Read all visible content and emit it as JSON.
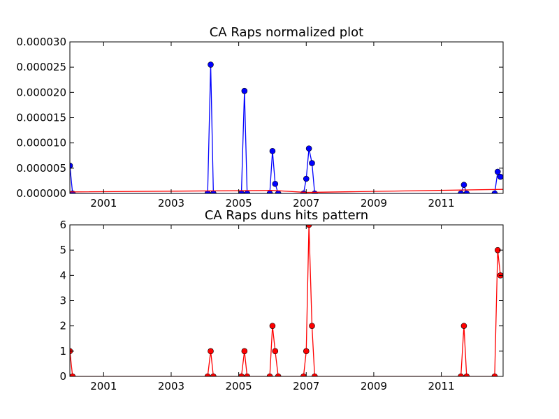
{
  "chart_data": [
    {
      "type": "line",
      "title": "CA Raps normalized plot",
      "xlabel": "",
      "ylabel": "",
      "xlim": [
        2000.0,
        2012.83
      ],
      "ylim": [
        0,
        3e-05
      ],
      "x_ticks": [
        2001,
        2003,
        2005,
        2007,
        2009,
        2011
      ],
      "y_ticks": [
        0,
        5e-06,
        1e-05,
        1.5e-05,
        2e-05,
        2.5e-05,
        3e-05
      ],
      "y_tick_labels": [
        "0.000000",
        "0.000005",
        "0.000010",
        "0.000015",
        "0.000020",
        "0.000025",
        "0.000030"
      ],
      "grid": false,
      "series": [
        {
          "name": "",
          "color": "#0000ff",
          "marker": "circle",
          "points": [
            [
              2000.0,
              5.5e-06
            ],
            [
              2000.08,
              0
            ],
            [
              2004.08,
              0
            ],
            [
              2004.17,
              2.55e-05
            ],
            [
              2004.25,
              0
            ],
            [
              2005.08,
              0
            ],
            [
              2005.17,
              2.03e-05
            ],
            [
              2005.25,
              0
            ],
            [
              2005.92,
              0
            ],
            [
              2006.0,
              8.4e-06
            ],
            [
              2006.08,
              1.9e-06
            ],
            [
              2006.17,
              0
            ],
            [
              2006.92,
              0
            ],
            [
              2007.0,
              2.9e-06
            ],
            [
              2007.08,
              8.9e-06
            ],
            [
              2007.17,
              6e-06
            ],
            [
              2007.25,
              0
            ],
            [
              2011.58,
              0
            ],
            [
              2011.67,
              1.7e-06
            ],
            [
              2011.75,
              0
            ],
            [
              2012.58,
              0
            ],
            [
              2012.67,
              4.3e-06
            ],
            [
              2012.75,
              3.3e-06
            ]
          ]
        },
        {
          "name": "",
          "color": "#ff0000",
          "marker": "none",
          "points": [
            [
              2000.0,
              3e-07
            ],
            [
              2006.0,
              6e-07
            ],
            [
              2007.0,
              2e-07
            ],
            [
              2012.83,
              8e-07
            ]
          ]
        }
      ]
    },
    {
      "type": "line",
      "title": "CA Raps duns hits pattern",
      "xlabel": "",
      "ylabel": "",
      "xlim": [
        2000.0,
        2012.83
      ],
      "ylim": [
        0,
        6
      ],
      "x_ticks": [
        2001,
        2003,
        2005,
        2007,
        2009,
        2011
      ],
      "y_ticks": [
        0,
        1,
        2,
        3,
        4,
        5,
        6
      ],
      "y_tick_labels": [
        "0",
        "1",
        "2",
        "3",
        "4",
        "5",
        "6"
      ],
      "grid": false,
      "series": [
        {
          "name": "",
          "color": "#ff0000",
          "marker": "circle",
          "points": [
            [
              2000.0,
              1
            ],
            [
              2000.08,
              0
            ],
            [
              2004.08,
              0
            ],
            [
              2004.17,
              1
            ],
            [
              2004.25,
              0
            ],
            [
              2005.08,
              0
            ],
            [
              2005.17,
              1
            ],
            [
              2005.25,
              0
            ],
            [
              2005.92,
              0
            ],
            [
              2006.0,
              2
            ],
            [
              2006.08,
              1
            ],
            [
              2006.17,
              0
            ],
            [
              2006.92,
              0
            ],
            [
              2007.0,
              1
            ],
            [
              2007.08,
              6
            ],
            [
              2007.17,
              2
            ],
            [
              2007.25,
              0
            ],
            [
              2011.58,
              0
            ],
            [
              2011.67,
              2
            ],
            [
              2011.75,
              0
            ],
            [
              2012.58,
              0
            ],
            [
              2012.67,
              5
            ],
            [
              2012.75,
              4
            ]
          ]
        }
      ]
    }
  ]
}
